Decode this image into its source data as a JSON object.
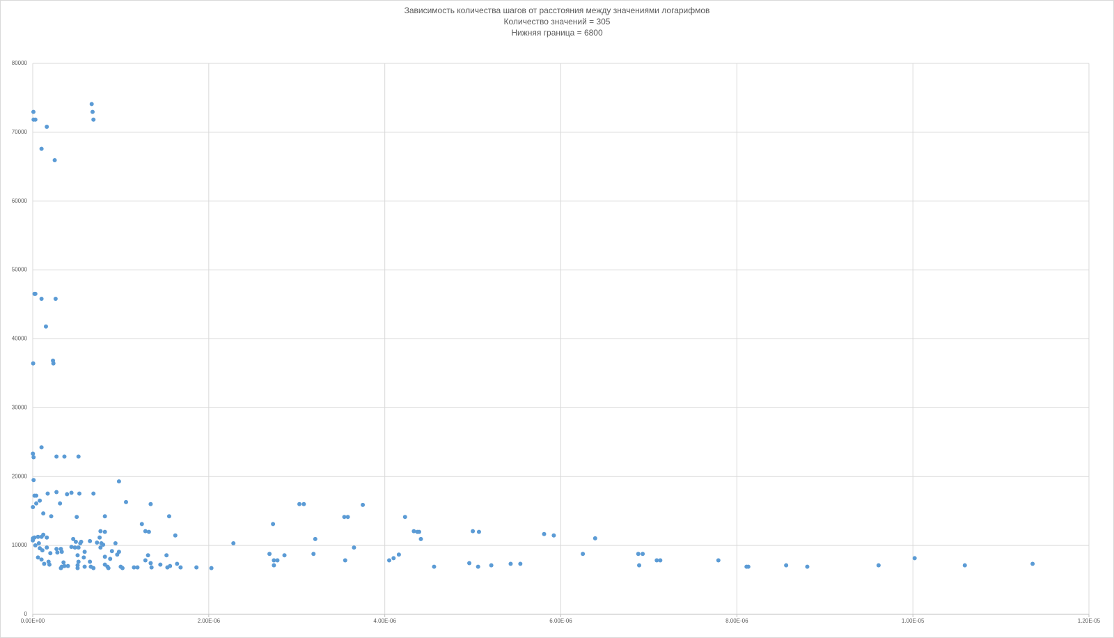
{
  "chart_data": {
    "type": "scatter",
    "title": "Зависимость количества шагов от расстояния между значениями логарифмов",
    "subtitles": [
      "Количество значений = 305",
      "Нижняя граница = 6800"
    ],
    "color": "#5b9bd5",
    "grid": true,
    "xlim": [
      0,
      1.2e-05
    ],
    "xticks": [
      {
        "value": 0,
        "label": "0.00E+00"
      },
      {
        "value": 2e-06,
        "label": "2.00E-06"
      },
      {
        "value": 4e-06,
        "label": "4.00E-06"
      },
      {
        "value": 6e-06,
        "label": "6.00E-06"
      },
      {
        "value": 8e-06,
        "label": "8.00E-06"
      },
      {
        "value": 1e-05,
        "label": "1.00E-05"
      },
      {
        "value": 1.2e-05,
        "label": "1.20E-05"
      }
    ],
    "ylim": [
      0,
      80000
    ],
    "yticks": [
      0,
      10000,
      20000,
      30000,
      40000,
      50000,
      60000,
      70000,
      80000
    ],
    "x": [
      8e-09,
      1e-08,
      3e-08,
      1.6e-07,
      1e-07,
      2.5e-07,
      6.7e-07,
      6.8e-07,
      6.9e-07,
      2e-08,
      3e-08,
      1e-07,
      2.6e-07,
      1.5e-07,
      2.3e-07,
      2.35e-07,
      5e-09,
      2e-09,
      1e-08,
      1e-07,
      2.7e-07,
      3.6e-07,
      5.2e-07,
      1e-08,
      9.8e-07,
      2e-08,
      4e-08,
      1.7e-07,
      2.7e-07,
      3.9e-07,
      4.4e-07,
      5.3e-07,
      6.9e-07,
      2e-09,
      4e-08,
      8e-08,
      3.1e-07,
      1.06e-06,
      1.34e-06,
      1.2e-07,
      2.1e-07,
      5e-07,
      8.2e-07,
      1.55e-06,
      1.24e-06,
      1.28e-06,
      1.32e-06,
      7.7e-07,
      8.2e-07,
      1.62e-06,
      1e-09,
      3e-09,
      2e-08,
      6e-08,
      1e-07,
      1.2e-07,
      1.6e-07,
      7e-08,
      3e-08,
      6e-08,
      8e-08,
      1.1e-07,
      1.6e-07,
      2e-07,
      1.8e-07,
      1.3e-07,
      1.9e-07,
      1e-07,
      2.7e-07,
      3.2e-07,
      2.8e-07,
      3.3e-07,
      3.5e-07,
      3.3e-07,
      3.2e-07,
      3.6e-07,
      4e-07,
      4.4e-07,
      4.8e-07,
      4.6e-07,
      4.9e-07,
      5.2e-07,
      5.1e-07,
      5.2e-07,
      5.1e-07,
      5.1e-07,
      5.4e-07,
      5.5e-07,
      5.8e-07,
      5.9e-07,
      5.9e-07,
      6.5e-07,
      6.5e-07,
      6.6e-07,
      6.9e-07,
      7.3e-07,
      7.6e-07,
      7.8e-07,
      8e-07,
      7.7e-07,
      8.2e-07,
      8.2e-07,
      8.5e-07,
      8.6e-07,
      8.8e-07,
      9e-07,
      9.4e-07,
      9.6e-07,
      9.8e-07,
      1e-06,
      1.02e-06,
      1.15e-06,
      1.19e-06,
      1.28e-06,
      1.31e-06,
      1.34e-06,
      1.35e-06,
      1.45e-06,
      1.52e-06,
      1.53e-06,
      1.56e-06,
      1.64e-06,
      1.68e-06,
      1.86e-06,
      2.03e-06,
      2.28e-06,
      2.69e-06,
      2.73e-06,
      2.74e-06,
      2.74e-06,
      2.78e-06,
      2.86e-06,
      3.03e-06,
      3.08e-06,
      3.19e-06,
      3.21e-06,
      3.54e-06,
      3.58e-06,
      3.55e-06,
      3.65e-06,
      3.75e-06,
      4.05e-06,
      4.1e-06,
      4.16e-06,
      4.23e-06,
      4.33e-06,
      4.37e-06,
      4.39e-06,
      4.41e-06,
      4.56e-06,
      4.96e-06,
      5e-06,
      5.06e-06,
      5.07e-06,
      5.21e-06,
      5.43e-06,
      5.54e-06,
      5.81e-06,
      5.92e-06,
      6.25e-06,
      6.39e-06,
      6.88e-06,
      6.89e-06,
      6.93e-06,
      7.09e-06,
      7.13e-06,
      7.79e-06,
      8.11e-06,
      8.13e-06,
      8.56e-06,
      8.8e-06,
      9.61e-06,
      1.002e-05,
      1.059e-05,
      1.136e-05
    ],
    "values": [
      72960,
      71830,
      71830,
      70800,
      67600,
      65940,
      74100,
      72960,
      71830,
      46540,
      46540,
      45820,
      45820,
      41800,
      36840,
      36430,
      36430,
      23320,
      22810,
      24250,
      22910,
      22910,
      22910,
      19500,
      19300,
      17230,
      17230,
      17540,
      17750,
      17440,
      17650,
      17540,
      17540,
      15580,
      16100,
      16510,
      16100,
      16300,
      16000,
      14650,
      14240,
      14140,
      14240,
      14240,
      13110,
      12070,
      11970,
      12070,
      11970,
      11450,
      10730,
      11040,
      11150,
      11250,
      11250,
      11560,
      11150,
      10320,
      10010,
      8260,
      9600,
      9290,
      9700,
      8880,
      7640,
      7330,
      7220,
      7950,
      9490,
      9490,
      8980,
      9080,
      7530,
      6910,
      6710,
      7020,
      7020,
      9800,
      9700,
      10940,
      10530,
      9700,
      8570,
      7640,
      7120,
      6710,
      10320,
      10530,
      8260,
      9080,
      6910,
      10630,
      7640,
      6910,
      6710,
      10420,
      11150,
      10320,
      10110,
      9700,
      8360,
      7220,
      6910,
      6710,
      8050,
      9180,
      10320,
      8670,
      9080,
      6910,
      6710,
      6810,
      6810,
      7840,
      8570,
      7430,
      6810,
      7220,
      8570,
      6810,
      7020,
      7330,
      6810,
      6810,
      6710,
      10320,
      8770,
      13110,
      7840,
      7120,
      7840,
      8570,
      16000,
      16000,
      8770,
      10940,
      14140,
      14140,
      7840,
      9700,
      15890,
      7840,
      8150,
      8670,
      14140,
      12070,
      11970,
      11970,
      10940,
      6910,
      7430,
      12070,
      6910,
      11970,
      7120,
      7330,
      7330,
      11660,
      11450,
      8770,
      11040,
      8770,
      7120,
      8770,
      7840,
      7840,
      7840,
      6910,
      6910,
      7120,
      6910,
      7120,
      8150,
      7120,
      7330
    ]
  }
}
